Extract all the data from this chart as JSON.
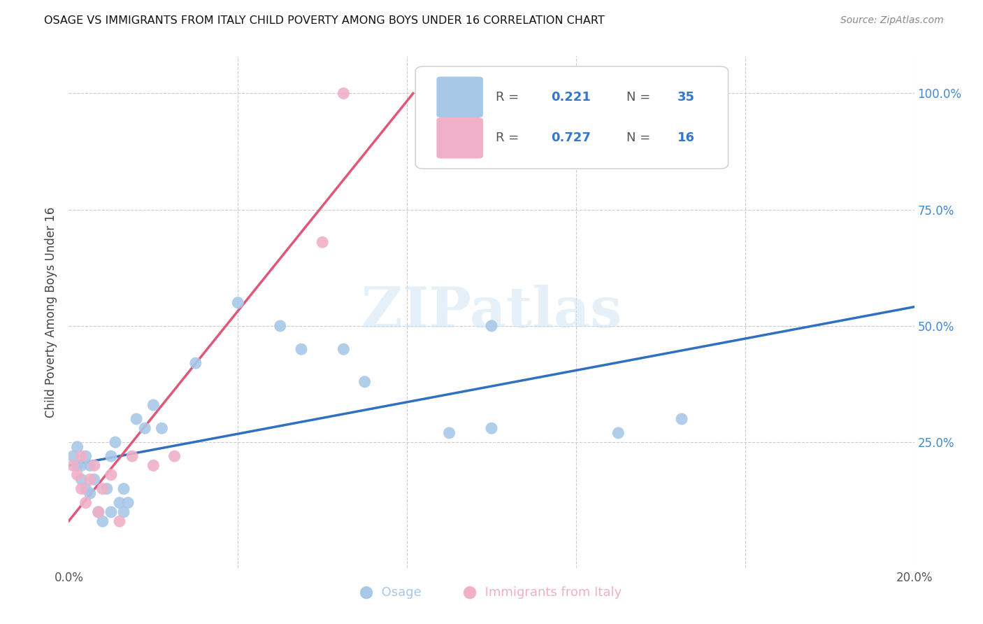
{
  "title": "OSAGE VS IMMIGRANTS FROM ITALY CHILD POVERTY AMONG BOYS UNDER 16 CORRELATION CHART",
  "source": "Source: ZipAtlas.com",
  "ylabel": "Child Poverty Among Boys Under 16",
  "xlim": [
    0.0,
    0.2
  ],
  "ylim": [
    -0.02,
    1.08
  ],
  "osage_R": 0.221,
  "osage_N": 35,
  "italy_R": 0.727,
  "italy_N": 16,
  "blue_color": "#a8c8e8",
  "pink_color": "#f0b0c8",
  "blue_line_color": "#3070c0",
  "pink_line_color": "#e05878",
  "watermark_text": "ZIPatlas",
  "osage_x": [
    0.001,
    0.002,
    0.002,
    0.003,
    0.003,
    0.004,
    0.004,
    0.005,
    0.005,
    0.006,
    0.007,
    0.008,
    0.009,
    0.01,
    0.01,
    0.011,
    0.012,
    0.013,
    0.013,
    0.014,
    0.016,
    0.018,
    0.02,
    0.022,
    0.03,
    0.04,
    0.05,
    0.055,
    0.065,
    0.07,
    0.09,
    0.1,
    0.1,
    0.13,
    0.145
  ],
  "osage_y": [
    0.22,
    0.2,
    0.24,
    0.2,
    0.17,
    0.15,
    0.22,
    0.14,
    0.2,
    0.17,
    0.1,
    0.08,
    0.15,
    0.1,
    0.22,
    0.25,
    0.12,
    0.1,
    0.15,
    0.12,
    0.3,
    0.28,
    0.33,
    0.28,
    0.42,
    0.55,
    0.5,
    0.45,
    0.45,
    0.38,
    0.27,
    0.28,
    0.5,
    0.27,
    0.3
  ],
  "italy_x": [
    0.001,
    0.002,
    0.003,
    0.003,
    0.004,
    0.005,
    0.006,
    0.007,
    0.008,
    0.01,
    0.012,
    0.015,
    0.02,
    0.025,
    0.06,
    0.065
  ],
  "italy_y": [
    0.2,
    0.18,
    0.15,
    0.22,
    0.12,
    0.17,
    0.2,
    0.1,
    0.15,
    0.18,
    0.08,
    0.22,
    0.2,
    0.22,
    0.68,
    1.0
  ]
}
